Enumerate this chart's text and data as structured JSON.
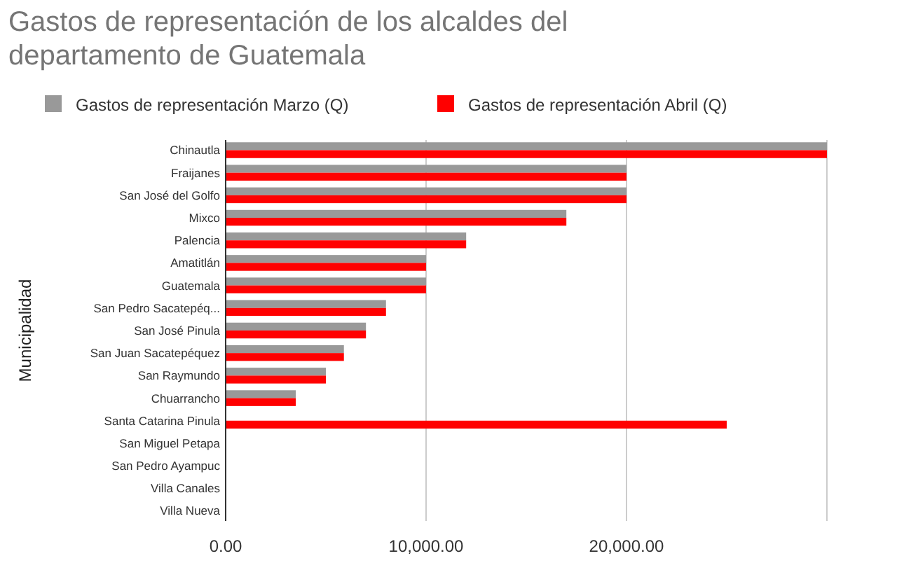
{
  "chart_data": {
    "type": "bar",
    "orientation": "horizontal",
    "title": "Gastos de representación de los alcaldes del departamento de Guatemala",
    "ylabel": "Municipalidad",
    "categories": [
      "Chinautla",
      "Fraijanes",
      "San José del Golfo",
      "Mixco",
      "Palencia",
      "Amatitlán",
      "Guatemala",
      "San Pedro Sacatepéq...",
      "San José Pinula",
      "San Juan Sacatepéquez",
      "San Raymundo",
      "Chuarrancho",
      "Santa Catarina Pinula",
      "San Miguel Petapa",
      "San Pedro Ayampuc",
      "Villa Canales",
      "Villa Nueva"
    ],
    "series": [
      {
        "name": "Gastos de representación Marzo (Q)",
        "color": "#999999",
        "values": [
          30000,
          20000,
          20000,
          17000,
          12000,
          10000,
          10000,
          8000,
          7000,
          5900,
          5000,
          3500,
          null,
          null,
          null,
          null,
          null
        ]
      },
      {
        "name": "Gastos de representación Abril (Q)",
        "color": "#ff0000",
        "values": [
          30000,
          20000,
          20000,
          17000,
          12000,
          10000,
          10000,
          8000,
          7000,
          5900,
          5000,
          3500,
          25000,
          null,
          null,
          null,
          null
        ]
      }
    ],
    "xlim": [
      0,
      30000
    ],
    "xticks": [
      {
        "value": 0,
        "label": "0.00"
      },
      {
        "value": 10000,
        "label": "10,000.00"
      },
      {
        "value": 20000,
        "label": "20,000.00"
      },
      {
        "value": 30000,
        "label": null
      }
    ],
    "grid": "x",
    "legend": "top"
  }
}
